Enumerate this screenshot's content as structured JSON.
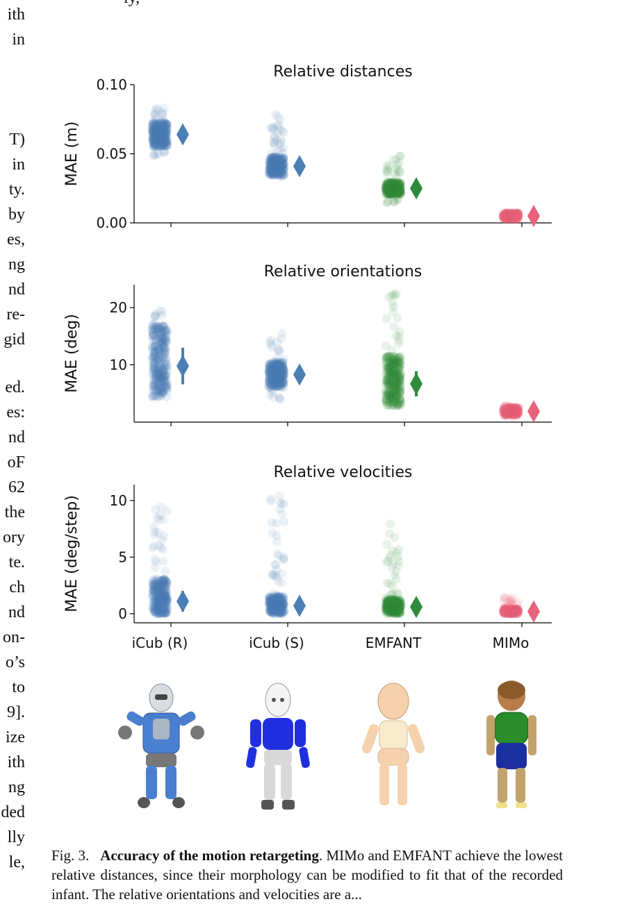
{
  "top_fragment": "ly,",
  "left_column_fragments": [
    "ith",
    "in",
    "T)",
    "in",
    "ty.",
    "by",
    "es,",
    "ng",
    "nd",
    "re-",
    "gid",
    "ed.",
    "es:",
    "nd",
    "oF",
    "62",
    "the",
    "ory",
    "te.",
    "ch",
    "nd",
    "on-",
    "o’s",
    "to",
    "9].",
    "ize",
    "ith",
    "ng",
    "ded",
    "lly",
    "le,"
  ],
  "colors": {
    "iCub (R)": "#4a7fb5",
    "iCub (S)": "#4a7fb5",
    "EMFANT": "#2e8b3b",
    "MIMo": "#e8637a"
  },
  "chart_data": [
    {
      "type": "scatter",
      "title": "Relative distances",
      "ylabel": "MAE (m)",
      "xlabel": "",
      "categories": [
        "iCub (R)",
        "iCub (S)",
        "EMFANT",
        "MIMo"
      ],
      "ylim": [
        0,
        0.1
      ],
      "yticks": [
        "0.00",
        "0.05",
        "0.10"
      ],
      "ytick_values": [
        0,
        0.05,
        0.1
      ],
      "show_xtick_labels": false,
      "series": [
        {
          "category": "iCub (R)",
          "points_min": 0.047,
          "points_max": 0.085,
          "mean": 0.064,
          "std": 0.004
        },
        {
          "category": "iCub (S)",
          "points_min": 0.031,
          "points_max": 0.079,
          "mean": 0.041,
          "std": 0.003
        },
        {
          "category": "EMFANT",
          "points_min": 0.014,
          "points_max": 0.051,
          "mean": 0.025,
          "std": 0.002
        },
        {
          "category": "MIMo",
          "points_min": 0.002,
          "points_max": 0.008,
          "mean": 0.005,
          "std": 0.001
        }
      ]
    },
    {
      "type": "scatter",
      "title": "Relative orientations",
      "ylabel": "MAE (deg)",
      "xlabel": "",
      "categories": [
        "iCub (R)",
        "iCub (S)",
        "EMFANT",
        "MIMo"
      ],
      "ylim": [
        0,
        24
      ],
      "yticks": [
        "10",
        "20"
      ],
      "ytick_values": [
        10,
        20
      ],
      "show_xtick_labels": false,
      "series": [
        {
          "category": "iCub (R)",
          "points_min": 4.2,
          "points_max": 19.5,
          "mean": 9.8,
          "std": 3.2
        },
        {
          "category": "iCub (S)",
          "points_min": 3.8,
          "points_max": 16.5,
          "mean": 8.3,
          "std": 1.0
        },
        {
          "category": "EMFANT",
          "points_min": 2.8,
          "points_max": 22.5,
          "mean": 6.7,
          "std": 2.2
        },
        {
          "category": "MIMo",
          "points_min": 0.8,
          "points_max": 3.0,
          "mean": 1.9,
          "std": 0.3
        }
      ]
    },
    {
      "type": "scatter",
      "title": "Relative velocities",
      "ylabel": "MAE (deg/step)",
      "xlabel": "",
      "categories": [
        "iCub (R)",
        "iCub (S)",
        "EMFANT",
        "MIMo"
      ],
      "ylim": [
        -0.8,
        11.4
      ],
      "yticks": [
        "0",
        "5",
        "10"
      ],
      "ytick_values": [
        0,
        5,
        10
      ],
      "show_xtick_labels": true,
      "series": [
        {
          "category": "iCub (R)",
          "points_min": 0.0,
          "points_max": 9.5,
          "mean": 1.1,
          "std": 0.9
        },
        {
          "category": "iCub (S)",
          "points_min": 0.0,
          "points_max": 10.8,
          "mean": 0.7,
          "std": 0.4
        },
        {
          "category": "EMFANT",
          "points_min": 0.0,
          "points_max": 8.0,
          "mean": 0.6,
          "std": 0.3
        },
        {
          "category": "MIMo",
          "points_min": 0.0,
          "points_max": 1.5,
          "mean": 0.2,
          "std": 0.1
        }
      ]
    }
  ],
  "caption": {
    "label": "Fig. 3.",
    "bold": "Accuracy of the motion retargeting",
    "rest": ". MIMo and EMFANT achieve the lowest relative distances, since their morphology can be modified to fit that of the recorded infant. The relative orientations and velocities are a..."
  }
}
